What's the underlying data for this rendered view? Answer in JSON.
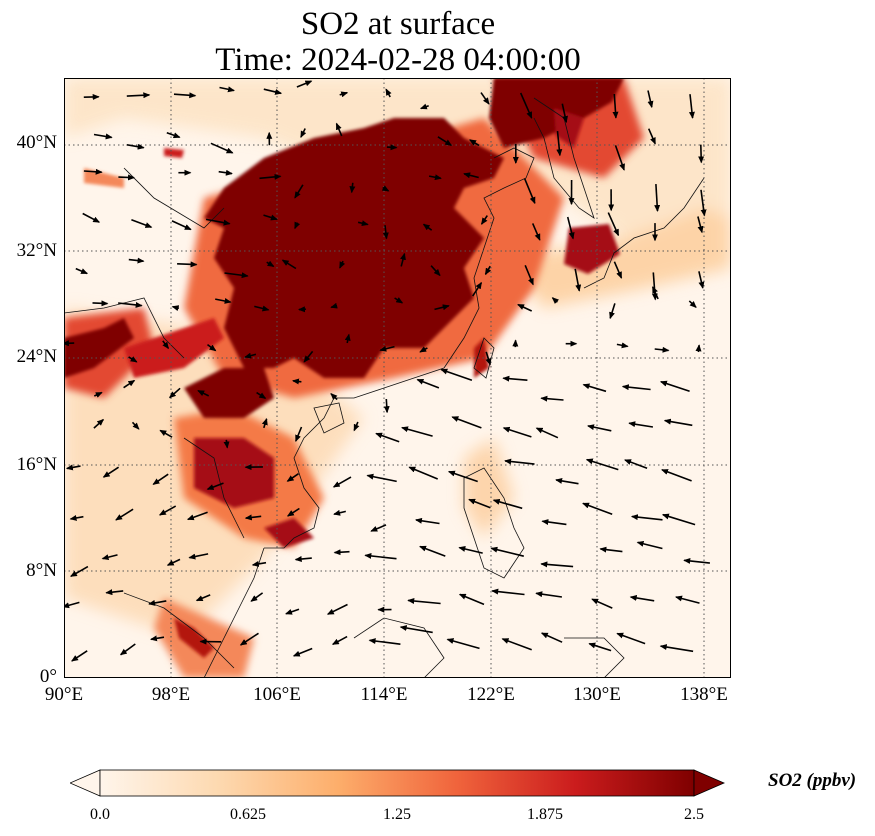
{
  "title": {
    "line1": "SO2 at surface",
    "line2": "Time: 2024-02-28 04:00:00"
  },
  "map": {
    "extent": {
      "lon_min": 90,
      "lon_max": 140,
      "lat_min": 0,
      "lat_max": 45
    },
    "lat_ticks": [
      "0°",
      "8°N",
      "16°N",
      "24°N",
      "32°N",
      "40°N"
    ],
    "lon_ticks": [
      "90°E",
      "98°E",
      "106°E",
      "114°E",
      "122°E",
      "130°E",
      "138°E"
    ],
    "gridlines": true,
    "vectors": "wind arrows (black)"
  },
  "colorbar": {
    "label": "SO2 (ppbv)",
    "ticks": [
      "0.0",
      "0.625",
      "1.25",
      "1.875",
      "2.5"
    ],
    "range": [
      0,
      2.5
    ],
    "extend": "both",
    "colormap": [
      "#fff5eb",
      "#fdd9b0",
      "#fdae6b",
      "#f0643c",
      "#cb1c1d",
      "#7f0000"
    ]
  }
}
